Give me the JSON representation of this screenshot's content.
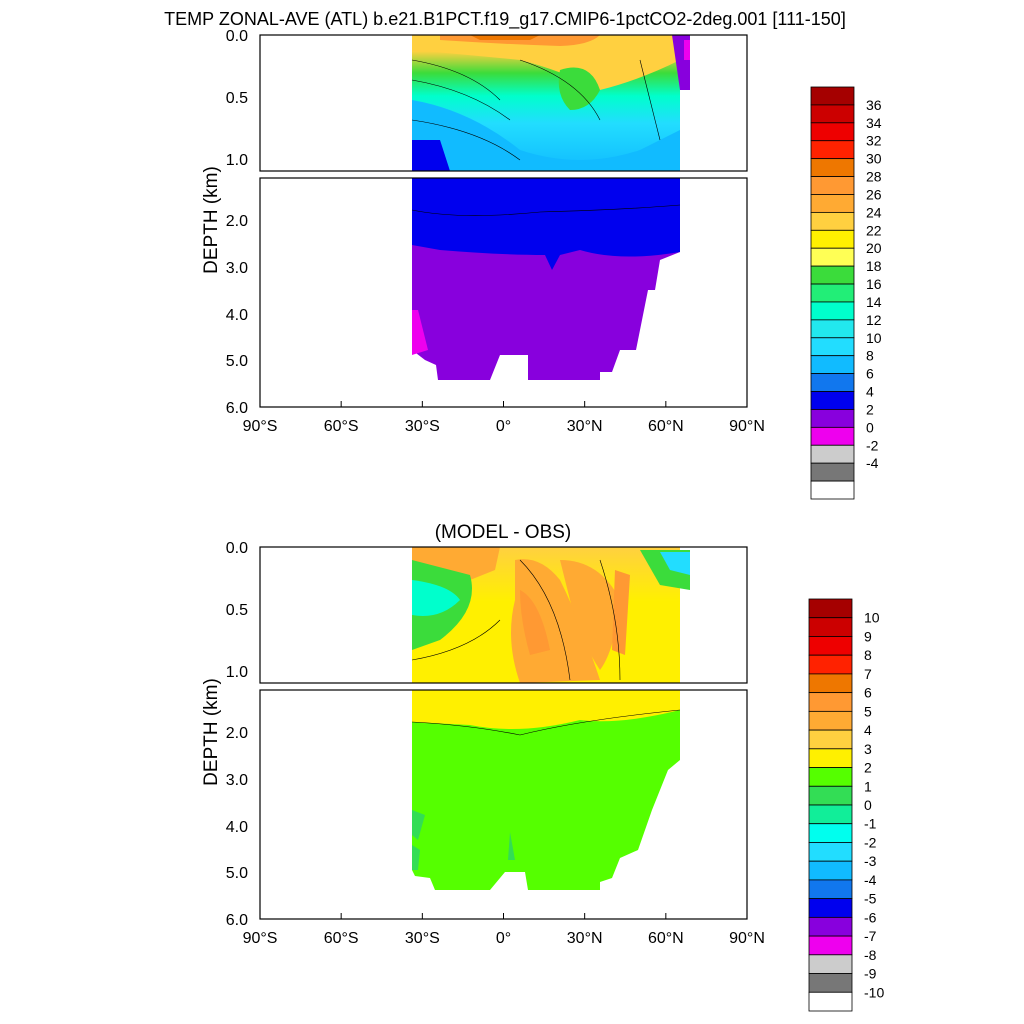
{
  "title": "TEMP ZONAL-AVE (ATL) b.e21.B1PCT.f19_g17.CMIP6-1pctCO2-2deg.001 [111-150]",
  "chart_data": [
    {
      "type": "heatmap",
      "title": "",
      "ylabel": "DEPTH (km)",
      "xlabel": "",
      "xlim": [
        -90,
        90
      ],
      "ylim": [
        6.0,
        0.0
      ],
      "x_ticks": [
        "90°S",
        "60°S",
        "30°S",
        "0°",
        "30°N",
        "60°N",
        "90°N"
      ],
      "y_ticks_upper": [
        "0.0",
        "0.5",
        "1.0"
      ],
      "y_ticks_lower": [
        "2.0",
        "3.0",
        "4.0",
        "5.0",
        "6.0"
      ],
      "data_extent_lat": [
        -34,
        66
      ],
      "colorbar": {
        "labels": [
          "36",
          "34",
          "32",
          "30",
          "28",
          "26",
          "24",
          "22",
          "20",
          "18",
          "16",
          "14",
          "12",
          "10",
          "8",
          "6",
          "4",
          "2",
          "0",
          "-2",
          "-4"
        ],
        "colors": [
          "#a50000",
          "#cc0000",
          "#ee0000",
          "#ff2200",
          "#ee7700",
          "#ff9933",
          "#ffaa33",
          "#ffd040",
          "#fff000",
          "#ffff55",
          "#3bdc3b",
          "#22ee77",
          "#00ffcc",
          "#22e8ee",
          "#22ddff",
          "#11bbff",
          "#1177ee",
          "#0000ee",
          "#8800dd",
          "#ee00ee",
          "#cccccc",
          "#777777",
          "#ffffff"
        ]
      }
    },
    {
      "type": "heatmap",
      "title": "(MODEL - OBS)",
      "ylabel": "DEPTH (km)",
      "xlabel": "",
      "xlim": [
        -90,
        90
      ],
      "ylim": [
        6.0,
        0.0
      ],
      "x_ticks": [
        "90°S",
        "60°S",
        "30°S",
        "0°",
        "30°N",
        "60°N",
        "90°N"
      ],
      "y_ticks_upper": [
        "0.0",
        "0.5",
        "1.0"
      ],
      "y_ticks_lower": [
        "2.0",
        "3.0",
        "4.0",
        "5.0",
        "6.0"
      ],
      "data_extent_lat": [
        -34,
        66
      ],
      "colorbar": {
        "labels": [
          "10",
          "9",
          "8",
          "7",
          "6",
          "5",
          "4",
          "3",
          "2",
          "1",
          "0",
          "-1",
          "-2",
          "-3",
          "-4",
          "-5",
          "-6",
          "-7",
          "-8",
          "-9",
          "-10"
        ],
        "colors": [
          "#a50000",
          "#cc0000",
          "#ee0000",
          "#ff2200",
          "#ee7700",
          "#ff9933",
          "#ffaa33",
          "#ffd040",
          "#fff000",
          "#55ff00",
          "#33dd55",
          "#11ee99",
          "#00ffee",
          "#22ddff",
          "#11bbff",
          "#1177ee",
          "#0000ee",
          "#8800dd",
          "#ee00ee",
          "#cccccc",
          "#777777",
          "#ffffff"
        ]
      }
    }
  ]
}
